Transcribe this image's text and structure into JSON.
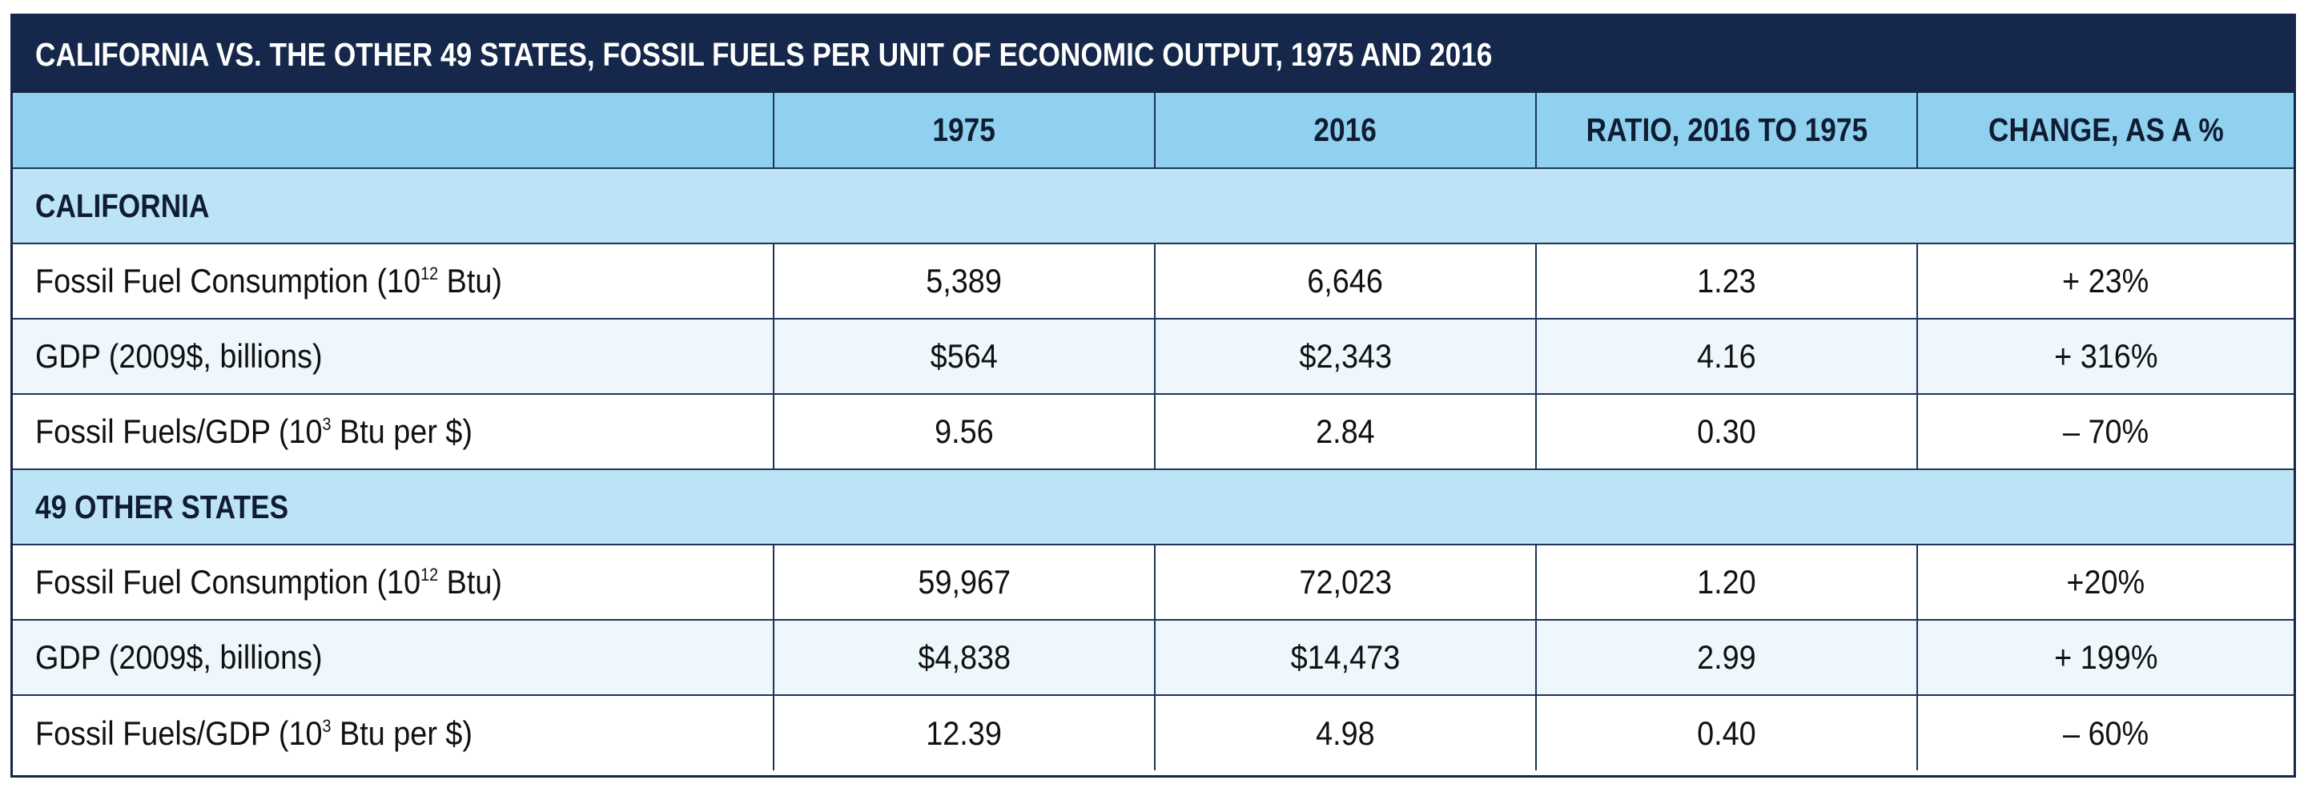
{
  "table": {
    "title": "CALIFORNIA VS. THE OTHER 49 STATES, FOSSIL FUELS PER UNIT OF ECONOMIC OUTPUT, 1975 AND 2016",
    "headers": [
      "",
      "1975",
      "2016",
      "RATIO, 2016 TO 1975",
      "CHANGE, AS A %"
    ],
    "sections": [
      {
        "name": "CALIFORNIA",
        "rows": [
          {
            "label_pre": "Fossil Fuel Consumption (10",
            "label_sup": "12",
            "label_post": " Btu)",
            "v1975": "5,389",
            "v2016": "6,646",
            "ratio": "1.23",
            "change": "+ 23%"
          },
          {
            "label_pre": "GDP (2009$, billions)",
            "label_sup": "",
            "label_post": "",
            "v1975": "$564",
            "v2016": "$2,343",
            "ratio": "4.16",
            "change": "+ 316%"
          },
          {
            "label_pre": "Fossil Fuels/GDP (10",
            "label_sup": "3",
            "label_post": " Btu per $)",
            "v1975": "9.56",
            "v2016": "2.84",
            "ratio": "0.30",
            "change": "– 70%"
          }
        ]
      },
      {
        "name": "49 OTHER STATES",
        "rows": [
          {
            "label_pre": "Fossil Fuel Consumption (10",
            "label_sup": "12",
            "label_post": " Btu)",
            "v1975": "59,967",
            "v2016": "72,023",
            "ratio": "1.20",
            "change": "+20%"
          },
          {
            "label_pre": "GDP (2009$, billions)",
            "label_sup": "",
            "label_post": "",
            "v1975": "$4,838",
            "v2016": "$14,473",
            "ratio": "2.99",
            "change": "+ 199%"
          },
          {
            "label_pre": "Fossil Fuels/GDP (10",
            "label_sup": "3",
            "label_post": " Btu per $)",
            "v1975": "12.39",
            "v2016": "4.98",
            "ratio": "0.40",
            "change": "– 60%"
          }
        ]
      }
    ]
  },
  "chart_data": {
    "type": "table",
    "title": "CALIFORNIA VS. THE OTHER 49 STATES, FOSSIL FUELS PER UNIT OF ECONOMIC OUTPUT, 1975 AND 2016",
    "columns": [
      "1975",
      "2016",
      "RATIO, 2016 TO 1975",
      "CHANGE, AS A %"
    ],
    "groups": [
      {
        "name": "CALIFORNIA",
        "rows": [
          {
            "metric": "Fossil Fuel Consumption (10^12 Btu)",
            "1975": 5389,
            "2016": 6646,
            "ratio": 1.23,
            "change_pct": 23
          },
          {
            "metric": "GDP (2009$, billions)",
            "1975": 564,
            "2016": 2343,
            "ratio": 4.16,
            "change_pct": 316
          },
          {
            "metric": "Fossil Fuels/GDP (10^3 Btu per $)",
            "1975": 9.56,
            "2016": 2.84,
            "ratio": 0.3,
            "change_pct": -70
          }
        ]
      },
      {
        "name": "49 OTHER STATES",
        "rows": [
          {
            "metric": "Fossil Fuel Consumption (10^12 Btu)",
            "1975": 59967,
            "2016": 72023,
            "ratio": 1.2,
            "change_pct": 20
          },
          {
            "metric": "GDP (2009$, billions)",
            "1975": 4838,
            "2016": 14473,
            "ratio": 2.99,
            "change_pct": 199
          },
          {
            "metric": "Fossil Fuels/GDP (10^3 Btu per $)",
            "1975": 12.39,
            "2016": 4.98,
            "ratio": 0.4,
            "change_pct": -60
          }
        ]
      }
    ]
  },
  "colors": {
    "title_bg": "#15284b",
    "header_bg": "#8fd1ee",
    "section_bg": "#bde4f6",
    "shade_row_bg": "#eef7fc",
    "border": "#1f3459"
  }
}
